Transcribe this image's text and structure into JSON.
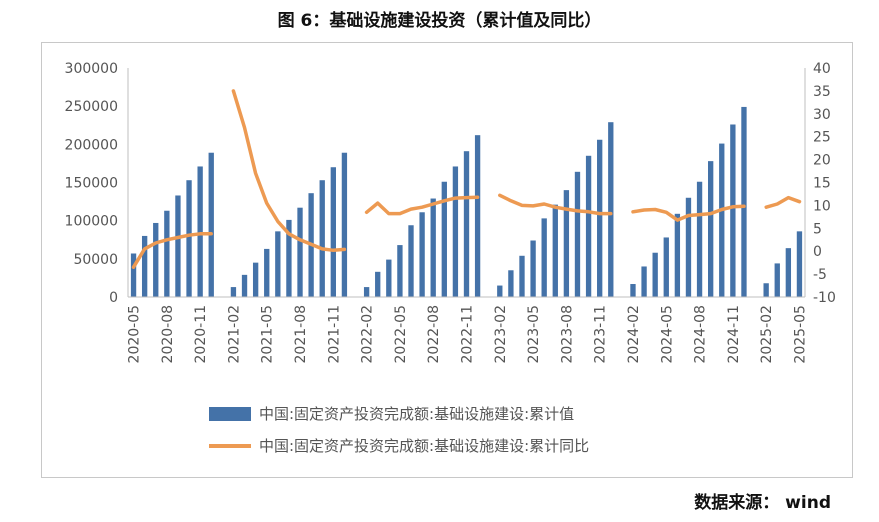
{
  "title": "图 6：基础设施建设投资（累计值及同比）",
  "source": "数据来源： wind",
  "colors": {
    "bar": "#4472a8",
    "line": "#ed9a52",
    "axis": "#bfbfbf",
    "text": "#595959"
  },
  "chart_data": {
    "type": "bar",
    "categories": [
      "2020-05",
      "2020-06",
      "2020-07",
      "2020-08",
      "2020-09",
      "2020-10",
      "2020-11",
      "2020-12",
      "2021-01",
      "2021-02",
      "2021-03",
      "2021-04",
      "2021-05",
      "2021-06",
      "2021-07",
      "2021-08",
      "2021-09",
      "2021-10",
      "2021-11",
      "2021-12",
      "2022-01",
      "2022-02",
      "2022-03",
      "2022-04",
      "2022-05",
      "2022-06",
      "2022-07",
      "2022-08",
      "2022-09",
      "2022-10",
      "2022-11",
      "2022-12",
      "2023-01",
      "2023-02",
      "2023-03",
      "2023-04",
      "2023-05",
      "2023-06",
      "2023-07",
      "2023-08",
      "2023-09",
      "2023-10",
      "2023-11",
      "2023-12",
      "2024-01",
      "2024-02",
      "2024-03",
      "2024-04",
      "2024-05",
      "2024-06",
      "2024-07",
      "2024-08",
      "2024-09",
      "2024-10",
      "2024-11",
      "2024-12",
      "2025-01",
      "2025-02",
      "2025-03",
      "2025-04",
      "2025-05"
    ],
    "x_tick_labels": [
      "2020-05",
      "2020-08",
      "2020-11",
      "2021-02",
      "2021-05",
      "2021-08",
      "2021-11",
      "2022-02",
      "2022-05",
      "2022-08",
      "2022-11",
      "2023-02",
      "2023-05",
      "2023-08",
      "2023-11",
      "2024-02",
      "2024-05",
      "2024-08",
      "2024-11",
      "2025-02",
      "2025-05"
    ],
    "series": [
      {
        "name": "中国:固定资产投资完成额:基础设施建设:累计值",
        "type": "bar",
        "axis": "left",
        "values": [
          57000,
          80000,
          97000,
          113000,
          133000,
          153000,
          171000,
          189000,
          null,
          13000,
          29000,
          45000,
          63000,
          86000,
          101000,
          117000,
          136000,
          153000,
          170000,
          189000,
          null,
          13000,
          33000,
          49000,
          68000,
          94000,
          111000,
          129000,
          151000,
          171000,
          191000,
          212000,
          null,
          15000,
          35000,
          54000,
          74000,
          103000,
          121000,
          140000,
          164000,
          185000,
          206000,
          229000,
          null,
          17000,
          40000,
          58000,
          78000,
          109000,
          130000,
          151000,
          178000,
          201000,
          226000,
          249000,
          null,
          18000,
          44000,
          64000,
          86000
        ]
      },
      {
        "name": "中国:固定资产投资完成额:基础设施建设:累计同比",
        "type": "line",
        "axis": "right",
        "values": [
          -3.5,
          0.5,
          1.8,
          2.5,
          3.0,
          3.5,
          3.8,
          3.8,
          null,
          35.0,
          27.0,
          17.0,
          10.5,
          6.5,
          3.8,
          2.5,
          1.5,
          0.5,
          0.2,
          0.4,
          null,
          8.5,
          10.5,
          8.2,
          8.2,
          9.2,
          9.6,
          10.3,
          11.0,
          11.6,
          11.7,
          11.8,
          null,
          12.2,
          11.0,
          10.0,
          9.9,
          10.3,
          9.6,
          9.2,
          8.8,
          8.6,
          8.2,
          8.2,
          null,
          8.6,
          9.0,
          9.1,
          8.5,
          6.8,
          7.8,
          8.0,
          8.2,
          9.1,
          9.7,
          9.8,
          null,
          9.6,
          10.3,
          11.7,
          10.8
        ]
      }
    ],
    "yleft_ticks": [
      "0",
      "50000",
      "100000",
      "150000",
      "200000",
      "250000",
      "300000"
    ],
    "yleft_lim": [
      0,
      300000
    ],
    "yright_ticks": [
      "-10",
      "-5",
      "0",
      "5",
      "10",
      "15",
      "20",
      "25",
      "30",
      "35",
      "40"
    ],
    "yright_lim": [
      -10,
      40
    ],
    "legend_position": "bottom",
    "grid": false
  }
}
